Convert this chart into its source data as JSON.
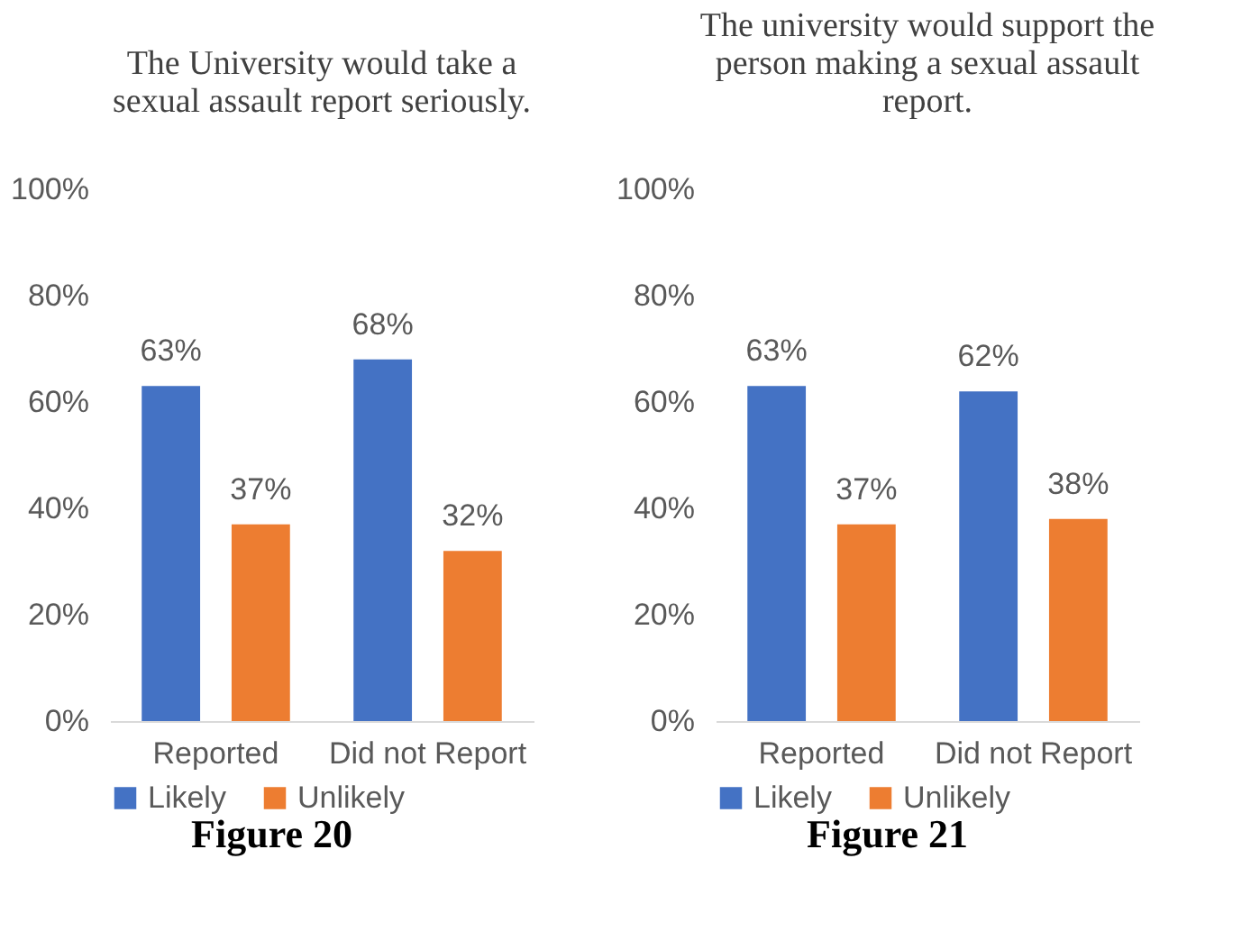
{
  "chart_data": [
    {
      "type": "bar",
      "title": "The University  would take a sexual assault report seriously.",
      "categories": [
        "Reported",
        "Did not Report"
      ],
      "series": [
        {
          "name": "Likely",
          "color": "#4472c4",
          "values": [
            63,
            68
          ],
          "value_labels": [
            "63%",
            "68%"
          ]
        },
        {
          "name": "Unlikely",
          "color": "#ed7d31",
          "values": [
            37,
            32
          ],
          "value_labels": [
            "37%",
            "32%"
          ]
        }
      ],
      "ylim": [
        0,
        100
      ],
      "yticks": [
        {
          "value": 0,
          "label": "0%"
        },
        {
          "value": 20,
          "label": "20%"
        },
        {
          "value": 40,
          "label": "40%"
        },
        {
          "value": 60,
          "label": "60%"
        },
        {
          "value": 80,
          "label": "80%"
        },
        {
          "value": 100,
          "label": "100%"
        }
      ],
      "grid": false,
      "legend": "bottom",
      "annotations": [
        "Figure 20"
      ]
    },
    {
      "type": "bar",
      "title": "The university  would support the person making  a sexual assault report.",
      "categories": [
        "Reported",
        "Did not Report"
      ],
      "series": [
        {
          "name": "Likely",
          "color": "#4472c4",
          "values": [
            63,
            62
          ],
          "value_labels": [
            "63%",
            "62%"
          ]
        },
        {
          "name": "Unlikely",
          "color": "#ed7d31",
          "values": [
            37,
            38
          ],
          "value_labels": [
            "37%",
            "38%"
          ]
        }
      ],
      "ylim": [
        0,
        100
      ],
      "yticks": [
        {
          "value": 0,
          "label": "0%"
        },
        {
          "value": 20,
          "label": "20%"
        },
        {
          "value": 40,
          "label": "40%"
        },
        {
          "value": 60,
          "label": "60%"
        },
        {
          "value": 80,
          "label": "80%"
        },
        {
          "value": 100,
          "label": "100%"
        }
      ],
      "grid": false,
      "legend": "bottom",
      "annotations": [
        "Figure 21"
      ]
    }
  ]
}
